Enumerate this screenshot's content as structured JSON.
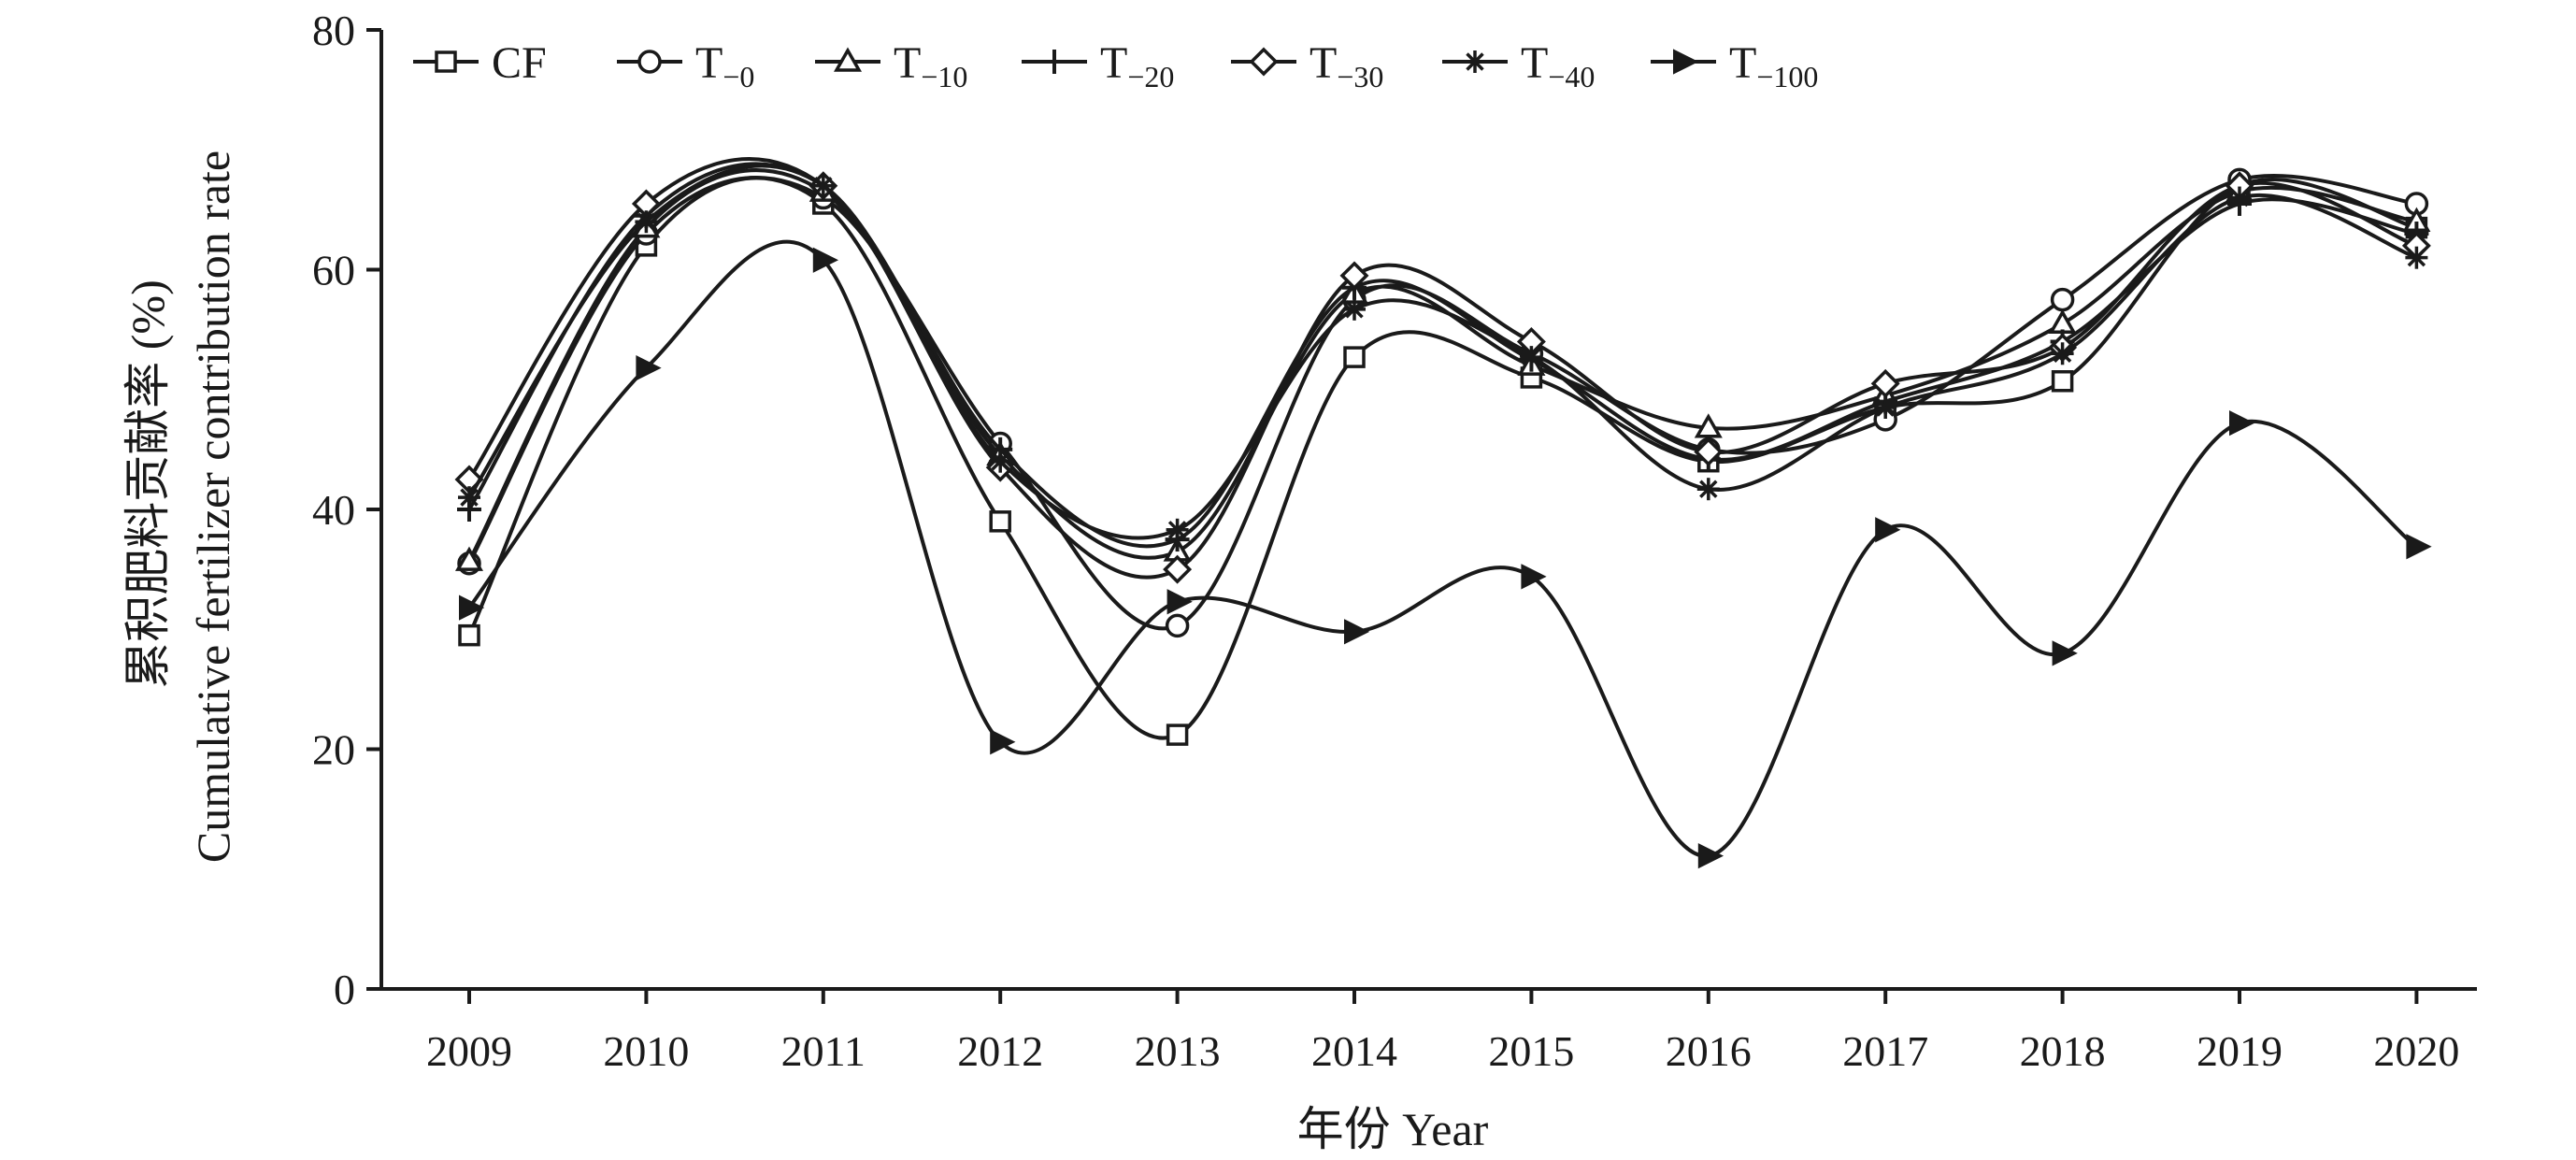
{
  "chart_data": {
    "type": "line",
    "title": "",
    "xlabel": "年份 Year",
    "ylabel_line1": "累积肥料贡献率 (%)",
    "ylabel_line2": "Cumulative fertilizer contribution rate",
    "categories": [
      "2009",
      "2010",
      "2011",
      "2012",
      "2013",
      "2014",
      "2015",
      "2016",
      "2017",
      "2018",
      "2019",
      "2020"
    ],
    "ylim": [
      0,
      80
    ],
    "yticks": [
      0,
      20,
      40,
      60,
      80
    ],
    "grid": false,
    "legend_position": "top",
    "series": [
      {
        "name": "CF",
        "base": "CF",
        "sub": "",
        "marker": "square",
        "values": [
          29.5,
          62.0,
          65.5,
          39.0,
          21.2,
          52.7,
          51.0,
          44.0,
          48.5,
          50.7,
          67.0,
          63.5
        ]
      },
      {
        "name": "T−0",
        "base": "T",
        "sub": "−0",
        "marker": "circle",
        "values": [
          35.5,
          63.0,
          66.0,
          45.5,
          30.3,
          57.5,
          53.0,
          45.0,
          47.5,
          57.5,
          67.5,
          65.5
        ]
      },
      {
        "name": "T−10",
        "base": "T",
        "sub": "−10",
        "marker": "triangle",
        "values": [
          35.7,
          63.5,
          66.5,
          44.5,
          36.5,
          58.0,
          52.0,
          46.8,
          49.5,
          55.5,
          66.5,
          64.0
        ]
      },
      {
        "name": "T−20",
        "base": "T",
        "sub": "−20",
        "marker": "plus",
        "values": [
          40.0,
          64.5,
          67.0,
          45.0,
          37.5,
          58.5,
          52.5,
          44.2,
          49.0,
          54.0,
          65.5,
          63.0
        ]
      },
      {
        "name": "T−30",
        "base": "T",
        "sub": "−30",
        "marker": "diamond",
        "values": [
          42.5,
          65.5,
          67.0,
          43.5,
          35.0,
          59.5,
          54.0,
          44.8,
          50.5,
          53.5,
          67.0,
          62.0
        ]
      },
      {
        "name": "T−40",
        "base": "T",
        "sub": "−40",
        "marker": "asterisk",
        "values": [
          41.0,
          64.0,
          67.0,
          44.0,
          38.3,
          56.7,
          52.7,
          41.7,
          48.5,
          53.0,
          66.0,
          61.0
        ]
      },
      {
        "name": "T−100",
        "base": "T",
        "sub": "−100",
        "marker": "triangle-right",
        "values": [
          31.8,
          51.8,
          60.8,
          20.6,
          32.3,
          29.8,
          34.4,
          11.1,
          38.3,
          28.0,
          47.2,
          36.9
        ]
      }
    ]
  }
}
